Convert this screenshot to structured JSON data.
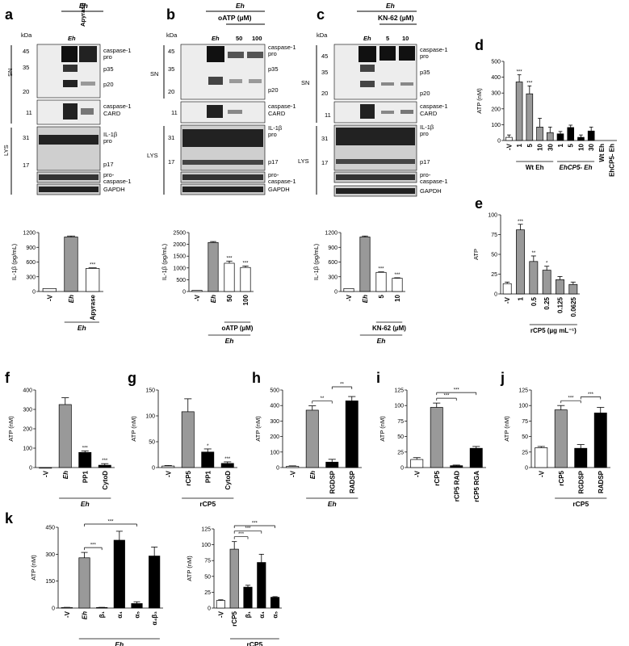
{
  "colors": {
    "grey": "#999999",
    "black": "#000000",
    "white": "#ffffff",
    "blot_bg": "#bdbdbd",
    "band": "#111111"
  },
  "panels": {
    "a": {
      "letter": "a",
      "eh": "Eh",
      "kda": "kDa",
      "lanes": [
        "Eh",
        "Apyrase"
      ],
      "markers_sn": [
        "45",
        "35",
        "20"
      ],
      "marker_card": "11",
      "markers_lys": [
        "31",
        "17"
      ],
      "sn": "SN",
      "lys": "LYS",
      "labels": [
        "caspase-1",
        "pro",
        "p35",
        "p20",
        "caspase-1",
        "CARD",
        "IL-1β",
        "pro",
        "p17",
        "pro-",
        "caspase-1",
        "GAPDH"
      ]
    },
    "b": {
      "letter": "b",
      "eh": "Eh",
      "treat": "oATP (µM)",
      "kda": "kDa",
      "lanes": [
        "Eh",
        "50",
        "100"
      ],
      "markers_sn": [
        "45",
        "35",
        "20"
      ],
      "marker_card": "11",
      "markers_lys": [
        "31",
        "17"
      ],
      "sn": "SN",
      "lys": "LYS",
      "labels": [
        "caspase-1",
        "pro",
        "p35",
        "p20",
        "caspase-1",
        "CARD",
        "IL-1β",
        "pro",
        "p17",
        "pro-",
        "caspase-1",
        "GAPDH"
      ]
    },
    "c": {
      "letter": "c",
      "eh": "Eh",
      "treat": "KN-62 (µM)",
      "kda": "kDa",
      "lanes": [
        "Eh",
        "5",
        "10"
      ],
      "markers_sn": [
        "45",
        "35",
        "20"
      ],
      "marker_card": "11",
      "markers_lys": [
        "31",
        "17"
      ],
      "sn": "SN",
      "lys": "LYS",
      "labels": [
        "caspase-1",
        "pro",
        "p35",
        "p20",
        "caspase-1",
        "CARD",
        "IL-1β",
        "pro",
        "p17",
        "pro-",
        "caspase-1",
        "GAPDH"
      ]
    },
    "d": {
      "letter": "d"
    },
    "e": {
      "letter": "e"
    },
    "f": {
      "letter": "f"
    },
    "g": {
      "letter": "g"
    },
    "h": {
      "letter": "h"
    },
    "i": {
      "letter": "i"
    },
    "j": {
      "letter": "j"
    },
    "k": {
      "letter": "k"
    }
  },
  "chart_data": [
    {
      "id": "a",
      "type": "bar",
      "ylabel": "IL-1β (pg/mL)",
      "ylim": [
        0,
        1200
      ],
      "yticks": [
        "0",
        "300",
        "600",
        "900",
        "1200"
      ],
      "categories": [
        "-V",
        "Eh",
        "Apyrase"
      ],
      "values": [
        60,
        1110,
        470
      ],
      "errors": [
        0,
        20,
        12
      ],
      "fills": [
        "white",
        "grey",
        "white"
      ],
      "stars": [
        "",
        "",
        "***"
      ],
      "group_label": "Eh"
    },
    {
      "id": "b",
      "type": "bar",
      "ylabel": "IL-1β (pg/mL)",
      "ylim": [
        0,
        2500
      ],
      "yticks": [
        "0",
        "500",
        "1000",
        "1500",
        "2000",
        "2500"
      ],
      "categories": [
        "-V",
        "Eh",
        "50",
        "100"
      ],
      "values": [
        50,
        2080,
        1200,
        1020
      ],
      "errors": [
        0,
        40,
        90,
        60
      ],
      "fills": [
        "white",
        "grey",
        "white",
        "white"
      ],
      "stars": [
        "",
        "",
        "***",
        "***"
      ],
      "bracket_label": "oATP (µM)",
      "group_label": "Eh"
    },
    {
      "id": "c",
      "type": "bar",
      "ylabel": "IL-1β (pg/mL)",
      "ylim": [
        0,
        1200
      ],
      "yticks": [
        "0",
        "300",
        "600",
        "900",
        "1200"
      ],
      "categories": [
        "-V",
        "Eh",
        "5",
        "10"
      ],
      "values": [
        60,
        1110,
        390,
        270
      ],
      "errors": [
        0,
        20,
        10,
        10
      ],
      "fills": [
        "white",
        "grey",
        "white",
        "white"
      ],
      "stars": [
        "",
        "",
        "***",
        "***"
      ],
      "bracket_label": "KN-62 (µM)",
      "group_label": "Eh"
    },
    {
      "id": "d",
      "type": "bar",
      "ylabel": "ATP (nM)",
      "ylim": [
        0,
        500
      ],
      "yticks": [
        "0",
        "100",
        "200",
        "300",
        "400",
        "500"
      ],
      "categories": [
        "-V",
        "1",
        "5",
        "10",
        "30",
        "1",
        "5",
        "10",
        "30",
        "Wt Eh",
        "EhCP5- Eh"
      ],
      "values": [
        20,
        370,
        295,
        85,
        50,
        42,
        82,
        20,
        60,
        0,
        0
      ],
      "errors": [
        15,
        45,
        50,
        55,
        35,
        15,
        15,
        15,
        25,
        0,
        0
      ],
      "fills": [
        "white",
        "grey",
        "grey",
        "grey",
        "grey",
        "black",
        "black",
        "black",
        "black",
        "none",
        "none"
      ],
      "stars": [
        "",
        "***",
        "***",
        "",
        "",
        "",
        "",
        "",
        "",
        "",
        ""
      ],
      "sub_labels": [
        "Wt Eh",
        "EhCP5- Eh"
      ]
    },
    {
      "id": "e",
      "type": "bar",
      "ylabel": "ATP",
      "ylim": [
        0,
        100
      ],
      "yticks": [
        "0",
        "25",
        "50",
        "75",
        "100"
      ],
      "categories": [
        "-V",
        "1",
        "0.5",
        "0.25",
        "0.125",
        "0.0625"
      ],
      "values": [
        13,
        81,
        41,
        30,
        18,
        12
      ],
      "errors": [
        2,
        7,
        7,
        5,
        4,
        3
      ],
      "fills": [
        "white",
        "grey",
        "grey",
        "grey",
        "grey",
        "grey"
      ],
      "stars": [
        "",
        "***",
        "**",
        "*",
        "",
        ""
      ],
      "bracket_label": "rCP5  (µg mL⁻¹)"
    },
    {
      "id": "f",
      "type": "bar",
      "ylabel": "ATP (nM)",
      "ylim": [
        0,
        400
      ],
      "yticks": [
        "0",
        "100",
        "200",
        "300",
        "400"
      ],
      "categories": [
        "-V",
        "Eh",
        "PP1",
        "CytoD"
      ],
      "values": [
        0,
        325,
        78,
        12
      ],
      "errors": [
        0,
        35,
        8,
        8
      ],
      "fills": [
        "white",
        "grey",
        "black",
        "black"
      ],
      "stars": [
        "",
        "",
        "***",
        "***"
      ],
      "group_label": "Eh"
    },
    {
      "id": "g",
      "type": "bar",
      "ylabel": "ATP (nM)",
      "ylim": [
        0,
        150
      ],
      "yticks": [
        "0",
        "50",
        "100",
        "150"
      ],
      "categories": [
        "-V",
        "rCP5",
        "PP1",
        "CytoD"
      ],
      "values": [
        3,
        108,
        30,
        8
      ],
      "errors": [
        1,
        25,
        6,
        3
      ],
      "fills": [
        "white",
        "grey",
        "black",
        "black"
      ],
      "stars": [
        "",
        "",
        "*",
        "***"
      ],
      "group_label": "rCP5"
    },
    {
      "id": "h",
      "type": "bar",
      "ylabel": "ATP (nM)",
      "ylim": [
        0,
        500
      ],
      "yticks": [
        "0",
        "100",
        "200",
        "300",
        "400",
        "500"
      ],
      "categories": [
        "-V",
        "Eh",
        "RGDSP",
        "RADSP"
      ],
      "values": [
        8,
        370,
        35,
        430
      ],
      "errors": [
        3,
        28,
        18,
        28
      ],
      "fills": [
        "white",
        "grey",
        "black",
        "black"
      ],
      "stars": [
        "",
        "",
        "",
        ""
      ],
      "comparisons": [
        {
          "from": 1,
          "to": 2,
          "label": "**"
        },
        {
          "from": 2,
          "to": 3,
          "label": "**"
        }
      ],
      "group_label": "Eh"
    },
    {
      "id": "i",
      "type": "bar",
      "ylabel": "ATP (nM)",
      "ylim": [
        0,
        125
      ],
      "yticks": [
        "0",
        "25",
        "50",
        "75",
        "100",
        "125"
      ],
      "categories": [
        "-V",
        "rCP5",
        "rCP5 RAD",
        "rCP5 RGA"
      ],
      "values": [
        13,
        97,
        3,
        31
      ],
      "errors": [
        3,
        7,
        1,
        3
      ],
      "fills": [
        "white",
        "grey",
        "black",
        "black"
      ],
      "stars": [
        "",
        "",
        "",
        ""
      ],
      "comparisons": [
        {
          "from": 1,
          "to": 2,
          "label": "***"
        },
        {
          "from": 1,
          "to": 3,
          "label": "***"
        }
      ]
    },
    {
      "id": "j",
      "type": "bar",
      "ylabel": "ATP (nM)",
      "ylim": [
        0,
        125
      ],
      "yticks": [
        "0",
        "25",
        "50",
        "75",
        "100",
        "125"
      ],
      "categories": [
        "-V",
        "rCP5",
        "RGDSP",
        "RADSP"
      ],
      "values": [
        32,
        93,
        31,
        88
      ],
      "errors": [
        2,
        7,
        6,
        9
      ],
      "fills": [
        "white",
        "grey",
        "black",
        "black"
      ],
      "stars": [
        "",
        "",
        "",
        ""
      ],
      "comparisons": [
        {
          "from": 1,
          "to": 2,
          "label": "***"
        },
        {
          "from": 2,
          "to": 3,
          "label": "***"
        }
      ],
      "group_label": "rCP5"
    },
    {
      "id": "k1",
      "type": "bar",
      "ylabel": "ATP (nM)",
      "ylim": [
        0,
        450
      ],
      "yticks": [
        "0",
        "150",
        "300",
        "450"
      ],
      "categories": [
        "-V",
        "Eh",
        "β₁",
        "α₄",
        "α₅",
        "α₄β₃"
      ],
      "values": [
        3,
        280,
        3,
        378,
        25,
        290
      ],
      "errors": [
        1,
        30,
        1,
        50,
        10,
        50
      ],
      "fills": [
        "white",
        "grey",
        "black",
        "black",
        "black",
        "black"
      ],
      "stars": [
        "",
        "",
        "",
        "",
        "",
        ""
      ],
      "comparisons": [
        {
          "from": 1,
          "to": 2,
          "label": "***"
        },
        {
          "from": 1,
          "to": 4,
          "label": "***"
        }
      ],
      "group_label": "Eh"
    },
    {
      "id": "k2",
      "type": "bar",
      "ylabel": "ATP (nM)",
      "ylim": [
        0,
        125
      ],
      "yticks": [
        "0",
        "25",
        "50",
        "75",
        "100",
        "125"
      ],
      "categories": [
        "-V",
        "rCP5",
        "β₁",
        "α₄",
        "α₅"
      ],
      "values": [
        12,
        93,
        33,
        72,
        17
      ],
      "errors": [
        1,
        12,
        3,
        13,
        1
      ],
      "fills": [
        "white",
        "grey",
        "black",
        "black",
        "black"
      ],
      "stars": [
        "",
        "",
        "",
        "",
        ""
      ],
      "comparisons": [
        {
          "from": 1,
          "to": 2,
          "label": "***"
        },
        {
          "from": 1,
          "to": 3,
          "label": "***"
        },
        {
          "from": 1,
          "to": 4,
          "label": "***"
        }
      ],
      "group_label": "rCP5"
    }
  ]
}
